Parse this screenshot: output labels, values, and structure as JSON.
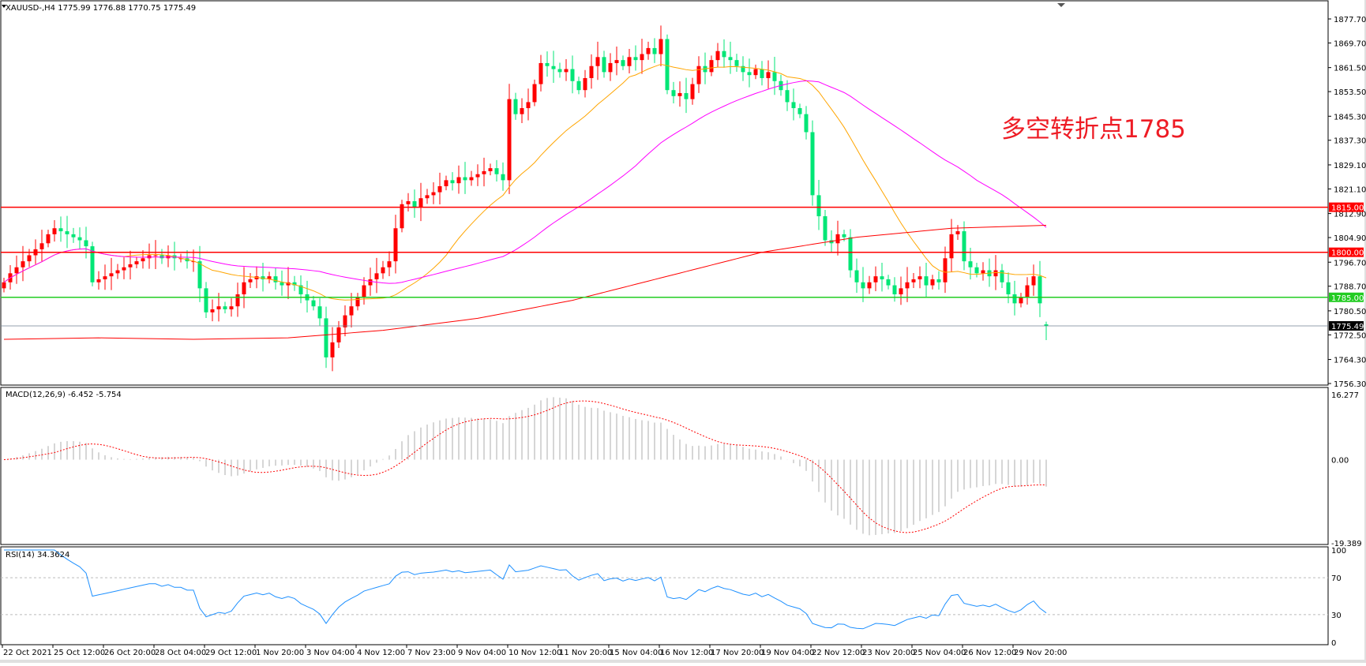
{
  "header": {
    "symbol_line": "XAUUSD-,H4  1775.99 1776.88 1770.75 1775.49",
    "annotation": "多空转折点1785"
  },
  "colors": {
    "bull": "#ff0000",
    "bear": "#00e676",
    "ma_fast": "#ffa500",
    "ma_mid": "#ff00ff",
    "ma_slow": "#ff0000",
    "resistance": "#ff0000",
    "support": "#22cc22",
    "last_price_bg": "#000000",
    "macd_hist": "#c0c0c0",
    "macd_signal": "#ff0000",
    "rsi": "#1e90ff",
    "annotation": "#ee1c25"
  },
  "chart_data": [
    {
      "type": "candlestick",
      "name": "XAUUSD-,H4",
      "ylim": [
        1756.3,
        1877.7
      ],
      "y_ticks": [
        "1877.70",
        "1869.70",
        "1861.50",
        "1853.50",
        "1845.30",
        "1837.30",
        "1829.10",
        "1821.10",
        "1812.90",
        "1804.90",
        "1796.70",
        "1788.70",
        "1780.50",
        "1772.50",
        "1764.30",
        "1756.30"
      ],
      "x_ticks": [
        "22 Oct 2021",
        "25 Oct 12:00",
        "26 Oct 20:00",
        "28 Oct 04:00",
        "29 Oct 12:00",
        "1 Nov 20:00",
        "3 Nov 04:00",
        "4 Nov 12:00",
        "7 Nov 23:00",
        "9 Nov 04:00",
        "10 Nov 12:00",
        "11 Nov 20:00",
        "15 Nov 04:00",
        "16 Nov 12:00",
        "17 Nov 20:00",
        "19 Nov 04:00",
        "22 Nov 12:00",
        "23 Nov 20:00",
        "25 Nov 04:00",
        "26 Nov 12:00",
        "29 Nov 20:00"
      ],
      "closes": [
        1790,
        1793,
        1795,
        1797,
        1799,
        1801,
        1803,
        1806,
        1808,
        1807,
        1806,
        1805,
        1804,
        1802,
        1790,
        1791,
        1792,
        1793,
        1794,
        1795,
        1796,
        1797,
        1798,
        1799,
        1799,
        1798,
        1799,
        1798,
        1798,
        1797,
        1797,
        1788,
        1780,
        1781,
        1782,
        1781,
        1782,
        1786,
        1790,
        1791,
        1792,
        1791,
        1792,
        1790,
        1789,
        1790,
        1789,
        1786,
        1784,
        1782,
        1778,
        1765,
        1770,
        1775,
        1779,
        1782,
        1785,
        1789,
        1791,
        1793,
        1795,
        1797,
        1808,
        1816,
        1817,
        1815,
        1818,
        1819,
        1820,
        1822,
        1824,
        1823,
        1825,
        1824,
        1825,
        1826,
        1827,
        1828,
        1826,
        1824,
        1851,
        1846,
        1848,
        1850,
        1856,
        1863,
        1862,
        1861,
        1860,
        1861,
        1857,
        1854,
        1858,
        1862,
        1865,
        1860,
        1863,
        1864,
        1862,
        1865,
        1864,
        1866,
        1868,
        1866,
        1871,
        1854,
        1852,
        1853,
        1851,
        1856,
        1862,
        1860,
        1864,
        1867,
        1865,
        1864,
        1862,
        1860,
        1859,
        1861,
        1858,
        1860,
        1857,
        1854,
        1850,
        1848,
        1846,
        1840,
        1819,
        1812,
        1804,
        1803,
        1806,
        1805,
        1794,
        1790,
        1788,
        1790,
        1792,
        1791,
        1789,
        1786,
        1788,
        1790,
        1791,
        1792,
        1789,
        1791,
        1790,
        1798,
        1806,
        1807,
        1797,
        1795,
        1793,
        1794,
        1792,
        1794,
        1790,
        1786,
        1783,
        1785,
        1789,
        1792,
        1783,
        1775.49
      ],
      "last_bar": {
        "open": 1775.99,
        "high": 1776.88,
        "low": 1770.75,
        "close": 1775.49
      },
      "ma_fast_period": 20,
      "ma_mid_period": 50,
      "ma_slow_values": [
        1771,
        1771.5,
        1771,
        1771.5,
        1774,
        1778,
        1784,
        1792,
        1800,
        1805,
        1808,
        1809
      ],
      "levels": [
        {
          "price": 1815.0,
          "label": "1815.00",
          "kind": "resistance"
        },
        {
          "price": 1800.0,
          "label": "1800.00",
          "kind": "resistance"
        },
        {
          "price": 1785.0,
          "label": "1785.00",
          "kind": "support"
        }
      ],
      "last_price_label": "1775.49"
    },
    {
      "type": "bar",
      "title": "MACD(12,26,9) -6.452 -5.754",
      "params": [
        12,
        26,
        9
      ],
      "ylim": [
        -19.389,
        16.277
      ],
      "y_ticks": [
        "16.277",
        "0.00",
        "-19.389"
      ]
    },
    {
      "type": "line",
      "title": "RSI(14) 34.3624",
      "period": 14,
      "ylim": [
        0,
        100
      ],
      "levels": [
        70,
        30
      ],
      "y_ticks": [
        "100",
        "70",
        "30",
        "0"
      ]
    }
  ]
}
